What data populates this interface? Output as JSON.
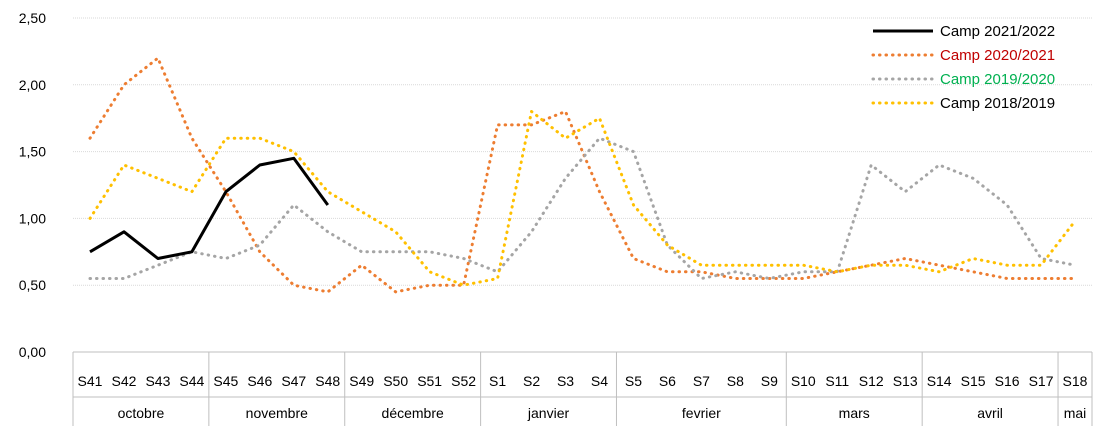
{
  "chart_data": {
    "type": "line",
    "title": "",
    "xlabel": "",
    "ylabel": "",
    "ylim": [
      0,
      2.5
    ],
    "y_ticks": [
      "0,00",
      "0,50",
      "1,00",
      "1,50",
      "2,00",
      "2,50"
    ],
    "grid": true,
    "legend_position": "top-right",
    "categories": [
      "S41",
      "S42",
      "S43",
      "S44",
      "S45",
      "S46",
      "S47",
      "S48",
      "S49",
      "S50",
      "S51",
      "S52",
      "S1",
      "S2",
      "S3",
      "S4",
      "S5",
      "S6",
      "S7",
      "S8",
      "S9",
      "S10",
      "S11",
      "S12",
      "S13",
      "S14",
      "S15",
      "S16",
      "S17",
      "S18"
    ],
    "months": [
      {
        "label": "octobre",
        "span": 4
      },
      {
        "label": "novembre",
        "span": 4
      },
      {
        "label": "décembre",
        "span": 4
      },
      {
        "label": "janvier",
        "span": 4
      },
      {
        "label": "fevrier",
        "span": 5
      },
      {
        "label": "mars",
        "span": 4
      },
      {
        "label": "avril",
        "span": 4
      },
      {
        "label": "mai",
        "span": 1
      }
    ],
    "series": [
      {
        "name": "Camp 2021/2022",
        "color": "#000000",
        "legend_text_color": "#000000",
        "style": "solid",
        "values": [
          0.75,
          0.9,
          0.7,
          0.75,
          1.2,
          1.4,
          1.45,
          1.1,
          null,
          null,
          null,
          null,
          null,
          null,
          null,
          null,
          null,
          null,
          null,
          null,
          null,
          null,
          null,
          null,
          null,
          null,
          null,
          null,
          null,
          null
        ]
      },
      {
        "name": "Camp 2020/2021",
        "color": "#ED7D31",
        "legend_text_color": "#C00000",
        "style": "dotted",
        "values": [
          1.6,
          2.0,
          2.2,
          1.6,
          1.2,
          0.75,
          0.5,
          0.45,
          0.65,
          0.45,
          0.5,
          0.5,
          1.7,
          1.7,
          1.8,
          1.2,
          0.7,
          0.6,
          0.6,
          0.55,
          0.55,
          0.55,
          0.6,
          0.65,
          0.7,
          0.65,
          0.6,
          0.55,
          0.55,
          0.55
        ]
      },
      {
        "name": "Camp 2019/2020",
        "color": "#A5A5A5",
        "legend_text_color": "#00B050",
        "style": "dotted",
        "values": [
          0.55,
          0.55,
          0.65,
          0.75,
          0.7,
          0.8,
          1.1,
          0.9,
          0.75,
          0.75,
          0.75,
          0.7,
          0.6,
          0.9,
          1.3,
          1.6,
          1.5,
          0.8,
          0.55,
          0.6,
          0.55,
          0.6,
          0.6,
          1.4,
          1.2,
          1.4,
          1.3,
          1.1,
          0.7,
          0.65
        ]
      },
      {
        "name": "Camp 2018/2019",
        "color": "#FFC000",
        "legend_text_color": "#000000",
        "style": "dotted",
        "values": [
          1.0,
          1.4,
          1.3,
          1.2,
          1.6,
          1.6,
          1.5,
          1.2,
          1.05,
          0.9,
          0.6,
          0.5,
          0.55,
          1.8,
          1.6,
          1.75,
          1.1,
          0.8,
          0.65,
          0.65,
          0.65,
          0.65,
          0.6,
          0.65,
          0.65,
          0.6,
          0.7,
          0.65,
          0.65,
          0.98
        ]
      }
    ]
  }
}
